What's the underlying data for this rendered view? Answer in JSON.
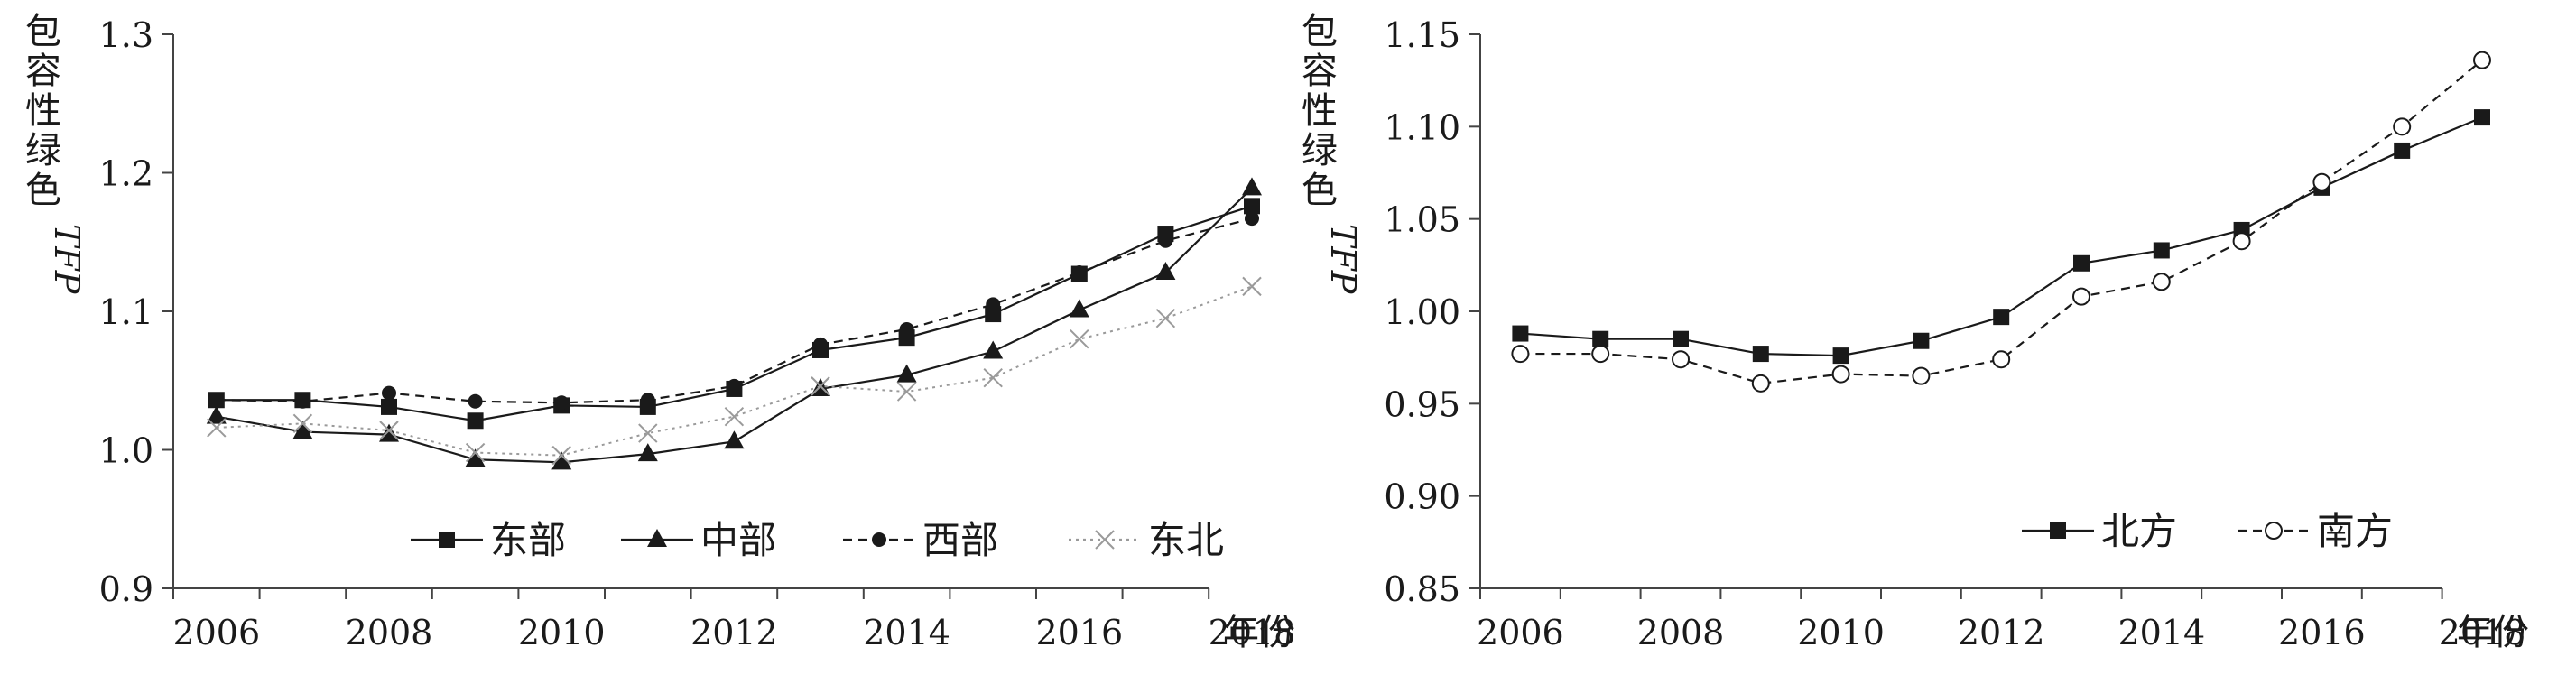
{
  "chart_data": [
    {
      "type": "line",
      "ylabel_cjk": "包容性绿色",
      "ylabel_latin": "TFP",
      "xlabel": "年份",
      "categories": [
        "2006",
        "2007",
        "2008",
        "2009",
        "2010",
        "2011",
        "2012",
        "2013",
        "2014",
        "2015",
        "2016",
        "2017",
        "2018"
      ],
      "x_tick_labels": [
        "2006",
        "2008",
        "2010",
        "2012",
        "2014",
        "2016",
        "2018"
      ],
      "y_tick_labels": [
        "0.9",
        "1.0",
        "1.1",
        "1.2",
        "1.3"
      ],
      "ylim": [
        0.9,
        1.3
      ],
      "y_ticks": [
        0.9,
        1.0,
        1.1,
        1.2,
        1.3
      ],
      "legend_position": "bottom-right",
      "series": [
        {
          "name": "东部",
          "marker": "square",
          "line": "solid",
          "color": "#1a1a1a",
          "values": [
            1.036,
            1.036,
            1.031,
            1.021,
            1.032,
            1.031,
            1.044,
            1.072,
            1.081,
            1.098,
            1.127,
            1.156,
            1.176
          ]
        },
        {
          "name": "中部",
          "marker": "triangle",
          "line": "solid",
          "color": "#1a1a1a",
          "values": [
            1.024,
            1.013,
            1.011,
            0.993,
            0.991,
            0.997,
            1.006,
            1.044,
            1.054,
            1.071,
            1.101,
            1.128,
            1.189
          ]
        },
        {
          "name": "西部",
          "marker": "circle",
          "line": "dashed",
          "color": "#1a1a1a",
          "values": [
            1.036,
            1.035,
            1.041,
            1.035,
            1.034,
            1.036,
            1.046,
            1.076,
            1.087,
            1.105,
            1.128,
            1.151,
            1.167
          ]
        },
        {
          "name": "东北",
          "marker": "x",
          "line": "dotted",
          "color": "#9a9a9a",
          "values": [
            1.016,
            1.019,
            1.014,
            0.998,
            0.996,
            1.012,
            1.024,
            1.046,
            1.042,
            1.052,
            1.08,
            1.095,
            1.118
          ]
        }
      ]
    },
    {
      "type": "line",
      "ylabel_cjk": "包容性绿色",
      "ylabel_latin": "TFP",
      "xlabel": "年份",
      "categories": [
        "2006",
        "2007",
        "2008",
        "2009",
        "2010",
        "2011",
        "2012",
        "2013",
        "2014",
        "2015",
        "2016",
        "2017",
        "2018"
      ],
      "x_tick_labels": [
        "2006",
        "2008",
        "2010",
        "2012",
        "2014",
        "2016",
        "2018"
      ],
      "y_tick_labels": [
        "0.85",
        "0.90",
        "0.95",
        "1.00",
        "1.05",
        "1.10",
        "1.15"
      ],
      "ylim": [
        0.85,
        1.15
      ],
      "y_ticks": [
        0.85,
        0.9,
        0.95,
        1.0,
        1.05,
        1.1,
        1.15
      ],
      "legend_position": "bottom-right",
      "series": [
        {
          "name": "北方",
          "marker": "square",
          "line": "solid",
          "color": "#1a1a1a",
          "values": [
            0.988,
            0.985,
            0.985,
            0.977,
            0.976,
            0.984,
            0.997,
            1.026,
            1.033,
            1.044,
            1.067,
            1.087,
            1.105
          ]
        },
        {
          "name": "南方",
          "marker": "circle-open",
          "line": "dashed",
          "color": "#1a1a1a",
          "values": [
            0.977,
            0.977,
            0.974,
            0.961,
            0.966,
            0.965,
            0.974,
            1.008,
            1.016,
            1.038,
            1.07,
            1.1,
            1.136
          ]
        }
      ]
    }
  ]
}
